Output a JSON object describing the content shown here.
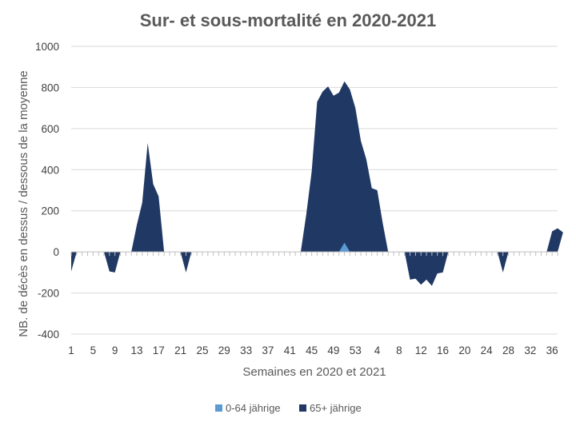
{
  "chart_data": {
    "type": "area",
    "title": "Sur- et sous-mortalité en 2020-2021",
    "xlabel": "Semaines en 2020 et 2021",
    "ylabel": "NB. de décès en dessus / dessous de la moyenne",
    "ylim": [
      -400,
      1000
    ],
    "yticks": [
      "1000",
      "800",
      "600",
      "400",
      "200",
      "0",
      "-200",
      "-400"
    ],
    "ytick_values": [
      1000,
      800,
      600,
      400,
      200,
      0,
      -200,
      -400
    ],
    "x_tick_labels": [
      "1",
      "5",
      "9",
      "13",
      "17",
      "21",
      "25",
      "29",
      "33",
      "37",
      "41",
      "45",
      "49",
      "53",
      "4",
      "8",
      "12",
      "16",
      "20",
      "24",
      "28",
      "32",
      "36"
    ],
    "x_tick_every": 4,
    "n_weeks": 90,
    "grid": "horizontal",
    "legend_position": "bottom",
    "series": [
      {
        "name": "0-64 jährige",
        "color": "#5B9BD5",
        "values": [
          0,
          0,
          0,
          0,
          0,
          0,
          0,
          0,
          0,
          0,
          0,
          0,
          0,
          0,
          0,
          0,
          0,
          0,
          0,
          0,
          0,
          0,
          0,
          0,
          0,
          0,
          0,
          0,
          0,
          0,
          0,
          0,
          0,
          0,
          0,
          0,
          0,
          0,
          0,
          0,
          0,
          0,
          0,
          0,
          0,
          0,
          0,
          0,
          0,
          0,
          45,
          0,
          0,
          0,
          0,
          0,
          0,
          0,
          0,
          0,
          0,
          0,
          0,
          0,
          0,
          0,
          0,
          0,
          0,
          0,
          0,
          0,
          0,
          0,
          0,
          0,
          0,
          0,
          0,
          0,
          0,
          0,
          0,
          0,
          0,
          0,
          0,
          0,
          0,
          0
        ]
      },
      {
        "name": "65+ jährige",
        "color": "#203864",
        "values": [
          -95,
          0,
          0,
          0,
          0,
          0,
          0,
          -95,
          -100,
          0,
          0,
          0,
          130,
          240,
          530,
          330,
          270,
          0,
          0,
          0,
          0,
          -100,
          0,
          0,
          0,
          0,
          0,
          0,
          0,
          0,
          0,
          0,
          0,
          0,
          0,
          0,
          0,
          0,
          0,
          0,
          0,
          0,
          0,
          180,
          390,
          730,
          780,
          805,
          760,
          775,
          830,
          790,
          700,
          540,
          450,
          310,
          300,
          140,
          0,
          0,
          0,
          0,
          -135,
          -130,
          -160,
          -135,
          -165,
          -105,
          -100,
          0,
          0,
          0,
          0,
          0,
          0,
          0,
          0,
          0,
          0,
          -100,
          0,
          0,
          0,
          0,
          0,
          0,
          0,
          0,
          100,
          115,
          95
        ]
      }
    ]
  }
}
